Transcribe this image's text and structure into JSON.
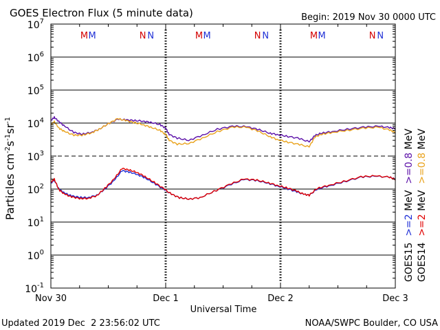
{
  "chart_data": {
    "type": "line",
    "title": "GOES Electron Flux (5 minute data)",
    "begin_label": "Begin: 2019 Nov 30 0000 UTC",
    "xlabel": "Universal Time",
    "ylabel": "Particles cm",
    "ylabel_sup1": "-2",
    "ylabel_mid1": "s",
    "ylabel_sup2": "-1",
    "ylabel_mid2": "sr",
    "ylabel_sup3": "-1",
    "y_scale": "log",
    "ylim": [
      0.1,
      10000000
    ],
    "y_ticks": [
      {
        "base": "10",
        "exp": "7",
        "value": 10000000
      },
      {
        "base": "10",
        "exp": "6",
        "value": 1000000
      },
      {
        "base": "10",
        "exp": "5",
        "value": 100000
      },
      {
        "base": "10",
        "exp": "4",
        "value": 10000
      },
      {
        "base": "10",
        "exp": "3",
        "value": 1000
      },
      {
        "base": "10",
        "exp": "2",
        "value": 100
      },
      {
        "base": "10",
        "exp": "1",
        "value": 10
      },
      {
        "base": "10",
        "exp": "0",
        "value": 1
      },
      {
        "base": "10",
        "exp": "-1",
        "value": 0.1
      }
    ],
    "x_unit": "day",
    "xlim": [
      0,
      3
    ],
    "x_ticks": [
      {
        "label": "Nov 30",
        "value": 0
      },
      {
        "label": "Dec 1",
        "value": 1
      },
      {
        "label": "Dec 2",
        "value": 2
      },
      {
        "label": "Dec 3",
        "value": 3
      }
    ],
    "threshold_value": 1000,
    "grid": true,
    "markers": [
      {
        "text": "M",
        "color": "#d40000",
        "x": 0.29
      },
      {
        "text": "M",
        "color": "#1f2fd6",
        "x": 0.36
      },
      {
        "text": "N",
        "color": "#d40000",
        "x": 0.8
      },
      {
        "text": "N",
        "color": "#1f2fd6",
        "x": 0.87
      },
      {
        "text": "M",
        "color": "#d40000",
        "x": 1.29
      },
      {
        "text": "M",
        "color": "#1f2fd6",
        "x": 1.36
      },
      {
        "text": "N",
        "color": "#d40000",
        "x": 1.8
      },
      {
        "text": "N",
        "color": "#1f2fd6",
        "x": 1.87
      },
      {
        "text": "M",
        "color": "#d40000",
        "x": 2.29
      },
      {
        "text": "M",
        "color": "#1f2fd6",
        "x": 2.36
      },
      {
        "text": "N",
        "color": "#d40000",
        "x": 2.8
      },
      {
        "text": "N",
        "color": "#1f2fd6",
        "x": 2.87
      }
    ],
    "legend": {
      "placement": "right",
      "columns": [
        {
          "satellite": "GOES15",
          "low_label": ">=2",
          "low_color": "#1f2fd6",
          "high_label": ">=0.8",
          "high_color": "#5b0fa8",
          "unit": "MeV"
        },
        {
          "satellite": "GOES14",
          "low_label": ">=2",
          "low_color": "#e00000",
          "high_label": ">=0.8",
          "high_color": "#e9a21b",
          "unit": "MeV"
        }
      ]
    },
    "series": [
      {
        "name": "GOES15 >=0.8 MeV",
        "color": "#5b0fa8",
        "x": [
          0,
          0.03,
          0.07,
          0.12,
          0.2,
          0.27,
          0.35,
          0.42,
          0.5,
          0.58,
          0.65,
          0.72,
          0.8,
          0.87,
          0.95,
          1.0,
          1.03,
          1.1,
          1.2,
          1.32,
          1.45,
          1.58,
          1.7,
          1.8,
          1.9,
          1.97,
          2.05,
          2.15,
          2.25,
          2.3,
          2.36,
          2.45,
          2.58,
          2.72,
          2.85,
          2.95,
          3.0
        ],
        "y": [
          12000,
          15000,
          11000,
          8000,
          5200,
          4600,
          5200,
          6500,
          9500,
          13000,
          12500,
          12000,
          11500,
          10500,
          9000,
          7000,
          4500,
          3500,
          3000,
          4300,
          6500,
          8000,
          7800,
          6500,
          5000,
          4500,
          4000,
          3500,
          2700,
          4200,
          5000,
          5500,
          6500,
          7500,
          8000,
          7300,
          6800
        ]
      },
      {
        "name": "GOES14 >=0.8 MeV",
        "color": "#e9a21b",
        "x": [
          0,
          0.03,
          0.07,
          0.12,
          0.2,
          0.27,
          0.35,
          0.42,
          0.5,
          0.58,
          0.65,
          0.72,
          0.8,
          0.87,
          0.95,
          1.0,
          1.03,
          1.1,
          1.2,
          1.32,
          1.45,
          1.58,
          1.7,
          1.8,
          1.9,
          1.97,
          2.05,
          2.15,
          2.25,
          2.3,
          2.36,
          2.45,
          2.58,
          2.72,
          2.85,
          2.95,
          3.0
        ],
        "y": [
          9000,
          11000,
          7000,
          5500,
          4300,
          4300,
          5000,
          6500,
          9500,
          13500,
          12000,
          10500,
          9000,
          7500,
          6000,
          4500,
          3000,
          2300,
          2400,
          3500,
          5500,
          7500,
          7500,
          5800,
          4000,
          3200,
          2700,
          2300,
          1900,
          3800,
          4600,
          5200,
          6000,
          7000,
          7500,
          6200,
          5200
        ]
      },
      {
        "name": "GOES15 >=2 MeV",
        "color": "#1f2fd6",
        "x": [
          0,
          0.03,
          0.07,
          0.12,
          0.18,
          0.25,
          0.32,
          0.4,
          0.47,
          0.55,
          0.62,
          0.68,
          0.75,
          0.82,
          0.9,
          0.98,
          1.05,
          1.12,
          1.2,
          1.3,
          1.42,
          1.55,
          1.68,
          1.78,
          1.88,
          1.97,
          2.05,
          2.13,
          2.2,
          2.25,
          2.32,
          2.42,
          2.55,
          2.7,
          2.82,
          2.95,
          3.0
        ],
        "y": [
          150,
          190,
          100,
          75,
          62,
          56,
          55,
          65,
          100,
          180,
          360,
          330,
          280,
          220,
          150,
          100,
          70,
          55,
          50,
          55,
          85,
          130,
          195,
          185,
          155,
          125,
          105,
          85,
          70,
          65,
          100,
          125,
          165,
          230,
          245,
          230,
          200
        ]
      },
      {
        "name": "GOES14 >=2 MeV",
        "color": "#e00000",
        "x": [
          0,
          0.03,
          0.07,
          0.12,
          0.18,
          0.25,
          0.32,
          0.4,
          0.47,
          0.55,
          0.62,
          0.68,
          0.75,
          0.82,
          0.9,
          0.98,
          1.05,
          1.12,
          1.2,
          1.3,
          1.42,
          1.55,
          1.68,
          1.78,
          1.88,
          1.97,
          2.05,
          2.13,
          2.2,
          2.25,
          2.32,
          2.42,
          2.55,
          2.7,
          2.82,
          2.95,
          3.0
        ],
        "y": [
          160,
          200,
          95,
          70,
          58,
          52,
          52,
          63,
          105,
          200,
          420,
          380,
          320,
          240,
          160,
          105,
          70,
          55,
          50,
          55,
          85,
          135,
          200,
          190,
          160,
          130,
          110,
          90,
          70,
          65,
          105,
          130,
          170,
          235,
          250,
          230,
          195
        ]
      }
    ]
  },
  "footer": {
    "updated": "Updated 2019 Dec  2 23:56:02 UTC",
    "credit": "NOAA/SWPC Boulder, CO USA"
  }
}
